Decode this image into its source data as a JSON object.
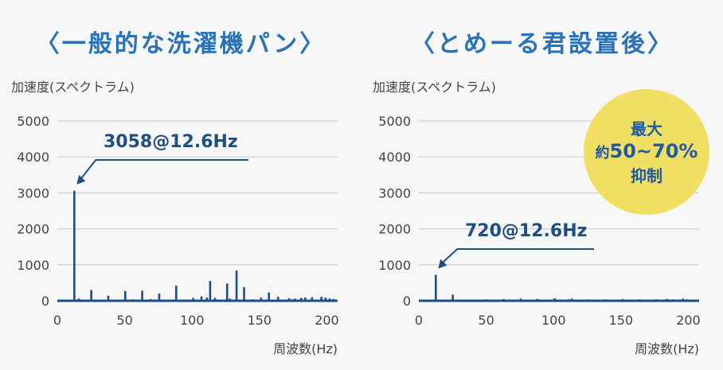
{
  "colors": {
    "title": "#2a72b8",
    "bar": "#1f4e85",
    "axis": "#1f4e85",
    "grid": "#c8c8c8",
    "text": "#444444",
    "badge_bg": "#f1df63",
    "badge_text": "#1f5aa8"
  },
  "badge": {
    "line1": "最大",
    "line2_prefix": "約",
    "line2_value": "50~70%",
    "line3": "抑制"
  },
  "chart_data": [
    {
      "type": "bar",
      "title": "〈一般的な洗濯機パン〉",
      "ylabel": "加速度(スペクトラム)",
      "xlabel": "周波数(Hz)",
      "xlim": [
        0,
        208
      ],
      "ylim": [
        0,
        5000
      ],
      "xticks": [
        0,
        50,
        100,
        150,
        200
      ],
      "yticks": [
        0,
        1000,
        2000,
        3000,
        4000,
        5000
      ],
      "grid": true,
      "annotation": {
        "text": "3058@12.6Hz",
        "x": 12.6,
        "y": 3058
      },
      "x": [
        12.6,
        16,
        25.2,
        37.8,
        50.4,
        56,
        63,
        69,
        75.6,
        88.2,
        100.8,
        107,
        111,
        113.4,
        117,
        126,
        128,
        133,
        138.6,
        145,
        151.2,
        157,
        163.8,
        172,
        174,
        176.4,
        181,
        184,
        189,
        196,
        199,
        202,
        205
      ],
      "values": [
        3058,
        60,
        300,
        140,
        270,
        40,
        280,
        50,
        200,
        420,
        80,
        120,
        90,
        550,
        80,
        480,
        60,
        840,
        380,
        40,
        90,
        230,
        110,
        70,
        40,
        60,
        80,
        90,
        100,
        110,
        90,
        60,
        50
      ]
    },
    {
      "type": "bar",
      "title": "〈とめーる君設置後〉",
      "ylabel": "加速度(スペクトラム)",
      "xlabel": "周波数(Hz)",
      "xlim": [
        0,
        208
      ],
      "ylim": [
        0,
        5000
      ],
      "xticks": [
        0,
        50,
        100,
        150,
        200
      ],
      "yticks": [
        0,
        1000,
        2000,
        3000,
        4000,
        5000
      ],
      "grid": true,
      "annotation": {
        "text": "720@12.6Hz",
        "x": 12.6,
        "y": 720
      },
      "x": [
        12.6,
        25.2,
        50.4,
        63,
        75.6,
        88.2,
        100.8,
        111,
        113.4,
        126,
        138.6,
        150,
        151.2,
        163.8,
        176.4,
        184,
        189,
        196,
        199,
        203
      ],
      "values": [
        720,
        170,
        40,
        50,
        60,
        50,
        70,
        40,
        60,
        40,
        40,
        30,
        50,
        40,
        40,
        50,
        40,
        60,
        40,
        30
      ]
    }
  ]
}
